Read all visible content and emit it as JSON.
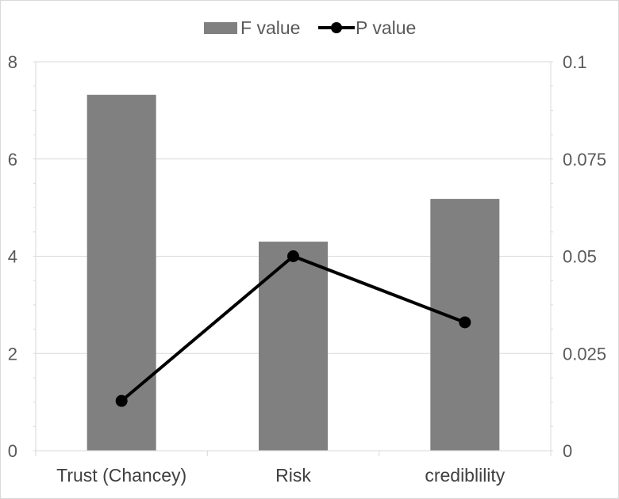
{
  "chart_data": {
    "type": "bar",
    "categories": [
      "Trust (Chancey)",
      "Risk",
      "crediblility"
    ],
    "series": [
      {
        "name": "F value",
        "type": "bar",
        "axis": "left",
        "values": [
          7.32,
          4.3,
          5.18
        ],
        "color": "#808080"
      },
      {
        "name": "P value",
        "type": "line",
        "axis": "right",
        "values": [
          0.0128,
          0.05,
          0.033
        ],
        "color": "#000000"
      }
    ],
    "y_left": {
      "min": 0,
      "max": 8,
      "ticks": [
        "0",
        "2",
        "4",
        "6",
        "8"
      ]
    },
    "y_right": {
      "min": 0,
      "max": 0.1,
      "ticks": [
        "0",
        "0.025",
        "0.05",
        "0.075",
        "0.1"
      ]
    },
    "grid": true,
    "legend_position": "top-center",
    "title": "",
    "xlabel": "",
    "ylabel": ""
  }
}
